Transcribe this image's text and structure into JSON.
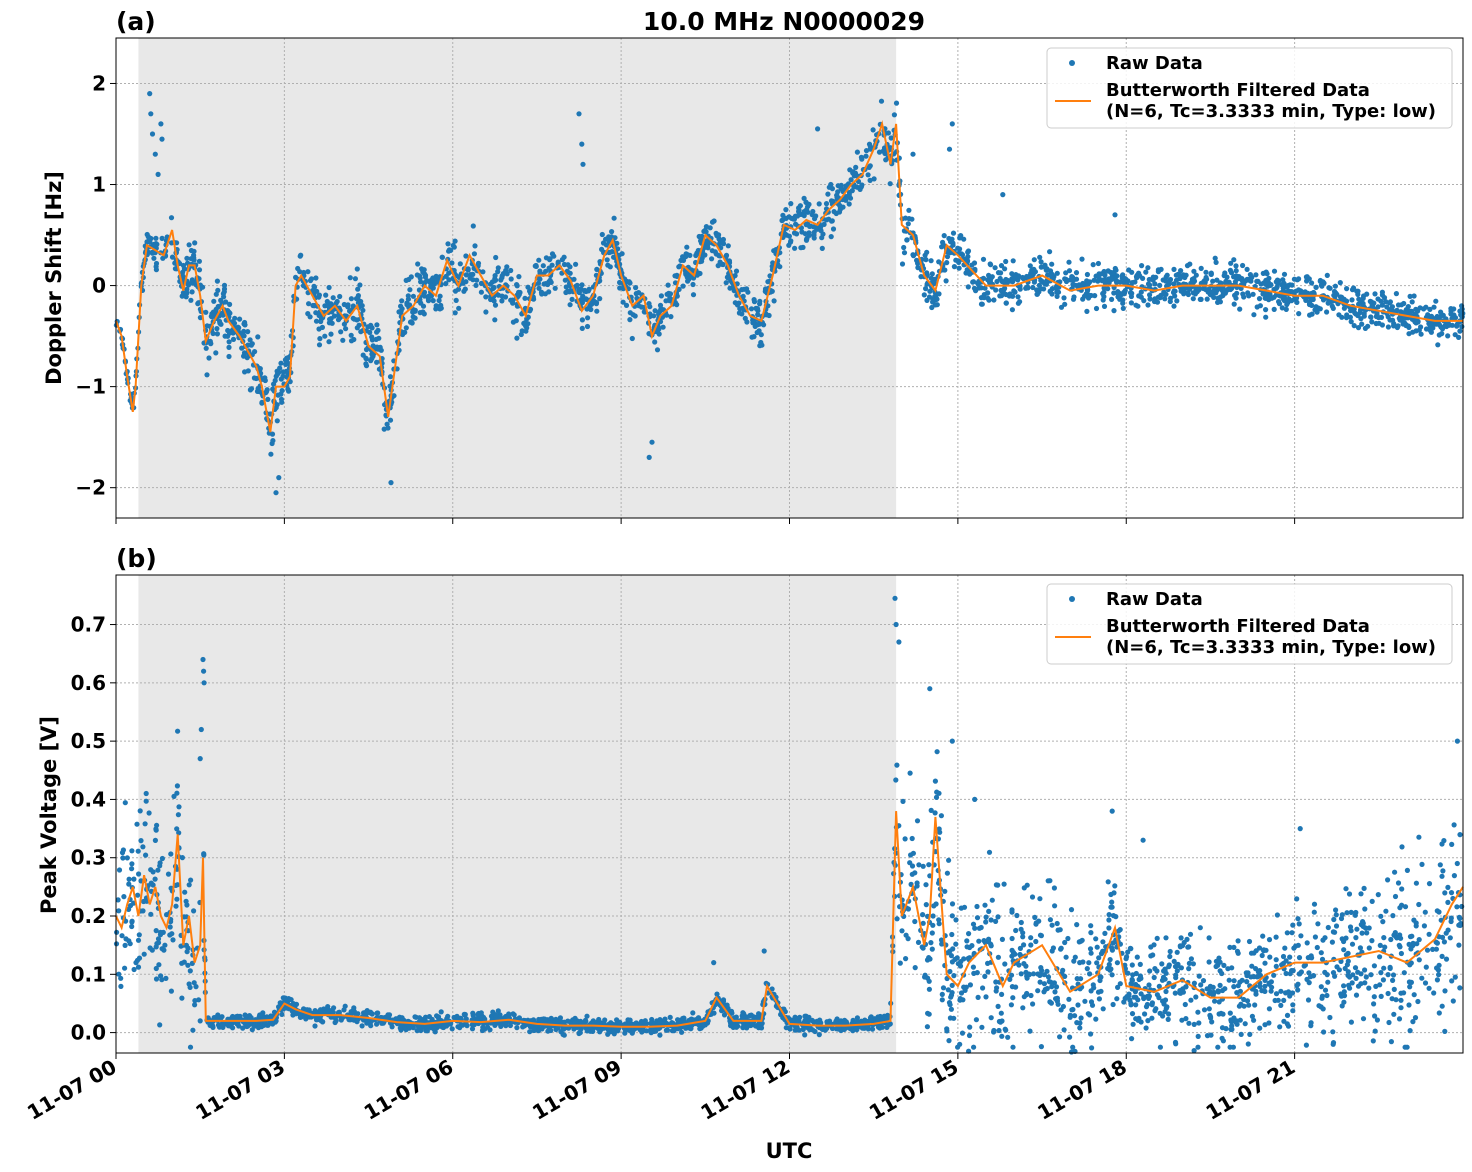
{
  "chart_data": [
    {
      "type": "scatter",
      "panel_label": "(a)",
      "title": "10.0 MHz N0000029",
      "xlabel": "",
      "ylabel": "Doppler Shift [Hz]",
      "xlim": [
        0,
        24
      ],
      "ylim": [
        -2.3,
        2.45
      ],
      "yticks": [
        -2,
        -1,
        0,
        1,
        2
      ],
      "ytick_labels": [
        "−2",
        "−1",
        "0",
        "1",
        "2"
      ],
      "grid": true,
      "shaded_interval": [
        0.4,
        13.9
      ],
      "legend": {
        "placement": "upper-right",
        "entries": [
          "Raw Data",
          "Butterworth Filtered Data",
          "(N=6, Tc=3.3333 min, Type: low)"
        ]
      },
      "series": [
        {
          "name": "Raw Data",
          "kind": "scatter",
          "color": "#1f77b4",
          "noise": [
            [
              0,
              0.05
            ],
            [
              0.4,
              0.08
            ],
            [
              0.8,
              0.2
            ],
            [
              1.5,
              0.25
            ],
            [
              3,
              0.3
            ],
            [
              5,
              0.25
            ],
            [
              9,
              0.2
            ],
            [
              13,
              0.2
            ],
            [
              14,
              0.25
            ],
            [
              15,
              0.2
            ],
            [
              24,
              0.15
            ]
          ],
          "outliers": [
            [
              0.6,
              1.9
            ],
            [
              0.62,
              1.7
            ],
            [
              0.65,
              1.5
            ],
            [
              0.7,
              1.3
            ],
            [
              0.75,
              1.1
            ],
            [
              0.8,
              1.6
            ],
            [
              0.82,
              1.45
            ],
            [
              8.25,
              1.7
            ],
            [
              8.3,
              1.4
            ],
            [
              8.32,
              1.2
            ],
            [
              9.5,
              -1.7
            ],
            [
              9.55,
              -1.55
            ],
            [
              2.85,
              -2.05
            ],
            [
              2.9,
              -1.9
            ],
            [
              4.9,
              -1.95
            ],
            [
              12.5,
              1.55
            ],
            [
              14.2,
              1.3
            ],
            [
              14.9,
              1.6
            ],
            [
              14.85,
              1.35
            ],
            [
              15.8,
              0.9
            ],
            [
              17.8,
              0.7
            ]
          ]
        },
        {
          "name": "Butterworth Filtered Data",
          "kind": "line",
          "color": "#ff7f0e",
          "x": [
            0.0,
            0.1,
            0.2,
            0.3,
            0.35,
            0.45,
            0.55,
            0.7,
            0.85,
            1.0,
            1.1,
            1.2,
            1.3,
            1.4,
            1.5,
            1.6,
            1.75,
            1.9,
            2.0,
            2.2,
            2.4,
            2.5,
            2.6,
            2.75,
            2.85,
            3.0,
            3.1,
            3.2,
            3.3,
            3.5,
            3.7,
            3.9,
            4.1,
            4.3,
            4.5,
            4.7,
            4.85,
            4.95,
            5.1,
            5.3,
            5.5,
            5.7,
            5.9,
            6.1,
            6.3,
            6.5,
            6.7,
            6.9,
            7.1,
            7.3,
            7.5,
            7.7,
            7.9,
            8.1,
            8.3,
            8.5,
            8.7,
            8.85,
            9.0,
            9.2,
            9.4,
            9.55,
            9.7,
            9.9,
            10.1,
            10.3,
            10.5,
            10.7,
            10.9,
            11.1,
            11.3,
            11.5,
            11.7,
            11.9,
            12.1,
            12.3,
            12.5,
            12.7,
            12.9,
            13.1,
            13.3,
            13.5,
            13.65,
            13.8,
            13.9,
            14.0,
            14.2,
            14.4,
            14.6,
            14.8,
            15.0,
            15.5,
            16.0,
            16.5,
            17.0,
            17.5,
            18.0,
            18.5,
            19.0,
            19.5,
            20.0,
            20.5,
            21.0,
            21.5,
            22.0,
            22.5,
            23.0,
            23.5,
            24.0
          ],
          "y": [
            -0.35,
            -0.5,
            -0.9,
            -1.25,
            -1.0,
            0.0,
            0.4,
            0.35,
            0.3,
            0.55,
            0.2,
            -0.05,
            0.2,
            0.2,
            -0.1,
            -0.55,
            -0.35,
            -0.2,
            -0.35,
            -0.5,
            -0.7,
            -0.8,
            -1.0,
            -1.45,
            -1.0,
            -1.0,
            -0.9,
            0.0,
            0.1,
            -0.1,
            -0.3,
            -0.2,
            -0.35,
            -0.2,
            -0.6,
            -0.7,
            -1.3,
            -0.9,
            -0.3,
            -0.2,
            0.0,
            -0.1,
            0.25,
            0.0,
            0.3,
            0.1,
            -0.1,
            0.0,
            -0.1,
            -0.3,
            0.1,
            0.1,
            0.2,
            0.05,
            -0.25,
            -0.1,
            0.3,
            0.45,
            0.1,
            -0.2,
            -0.1,
            -0.5,
            -0.3,
            -0.2,
            0.2,
            0.1,
            0.5,
            0.4,
            0.2,
            -0.1,
            -0.3,
            -0.35,
            0.1,
            0.6,
            0.55,
            0.65,
            0.6,
            0.75,
            0.85,
            1.0,
            1.1,
            1.35,
            1.6,
            1.2,
            1.6,
            0.6,
            0.5,
            0.1,
            -0.05,
            0.4,
            0.3,
            0.0,
            0.0,
            0.1,
            -0.05,
            0.0,
            0.0,
            -0.05,
            0.0,
            0.0,
            0.0,
            -0.05,
            -0.1,
            -0.1,
            -0.2,
            -0.25,
            -0.3,
            -0.35,
            -0.35
          ]
        }
      ]
    },
    {
      "type": "scatter",
      "panel_label": "(b)",
      "title": "",
      "xlabel": "UTC",
      "ylabel": "Peak Voltage [V]",
      "xlim": [
        0,
        24
      ],
      "ylim": [
        -0.035,
        0.785
      ],
      "yticks": [
        0.0,
        0.1,
        0.2,
        0.3,
        0.4,
        0.5,
        0.6,
        0.7
      ],
      "ytick_labels": [
        "0.0",
        "0.1",
        "0.2",
        "0.3",
        "0.4",
        "0.5",
        "0.6",
        "0.7"
      ],
      "xticks": [
        0,
        3,
        6,
        9,
        12,
        15,
        18,
        21
      ],
      "xtick_labels": [
        "11-07 00",
        "11-07 03",
        "11-07 06",
        "11-07 09",
        "11-07 12",
        "11-07 15",
        "11-07 18",
        "11-07 21"
      ],
      "grid": true,
      "shaded_interval": [
        0.4,
        13.9
      ],
      "legend": {
        "placement": "upper-right",
        "entries": [
          "Raw Data",
          "Butterworth Filtered Data",
          "(N=6, Tc=3.3333 min, Type: low)"
        ]
      },
      "series": [
        {
          "name": "Raw Data",
          "kind": "scatter",
          "color": "#1f77b4",
          "noise": [
            [
              0,
              0.12
            ],
            [
              1.2,
              0.14
            ],
            [
              1.55,
              0.14
            ],
            [
              1.6,
              0.012
            ],
            [
              13.8,
              0.012
            ],
            [
              13.95,
              0.16
            ],
            [
              16,
              0.12
            ],
            [
              18,
              0.08
            ],
            [
              20,
              0.09
            ],
            [
              22,
              0.12
            ],
            [
              24,
              0.14
            ]
          ],
          "outliers": [
            [
              1.55,
              0.64
            ],
            [
              1.56,
              0.62
            ],
            [
              1.57,
              0.6
            ],
            [
              1.52,
              0.52
            ],
            [
              1.5,
              0.47
            ],
            [
              13.88,
              0.745
            ],
            [
              13.9,
              0.7
            ],
            [
              13.95,
              0.67
            ],
            [
              14.5,
              0.59
            ],
            [
              14.9,
              0.5
            ],
            [
              15.3,
              0.4
            ],
            [
              17.75,
              0.38
            ],
            [
              18.3,
              0.33
            ],
            [
              21.1,
              0.35
            ],
            [
              23.9,
              0.5
            ],
            [
              11.55,
              0.14
            ],
            [
              10.65,
              0.12
            ]
          ]
        },
        {
          "name": "Butterworth Filtered Data",
          "kind": "line",
          "color": "#ff7f0e",
          "x": [
            0.0,
            0.1,
            0.2,
            0.3,
            0.4,
            0.5,
            0.6,
            0.7,
            0.8,
            0.9,
            1.0,
            1.1,
            1.2,
            1.3,
            1.4,
            1.5,
            1.55,
            1.6,
            1.7,
            2.0,
            2.5,
            2.8,
            3.0,
            3.2,
            3.5,
            4.0,
            4.5,
            5.0,
            5.5,
            6.0,
            6.5,
            7.0,
            7.5,
            8.0,
            8.5,
            9.0,
            9.5,
            10.0,
            10.5,
            10.7,
            11.0,
            11.5,
            11.6,
            12.0,
            12.5,
            13.0,
            13.5,
            13.8,
            13.9,
            14.0,
            14.2,
            14.4,
            14.5,
            14.6,
            14.8,
            15.0,
            15.2,
            15.5,
            15.8,
            16.0,
            16.5,
            17.0,
            17.5,
            17.8,
            18.0,
            18.5,
            19.0,
            19.5,
            20.0,
            20.5,
            21.0,
            21.5,
            22.0,
            22.5,
            23.0,
            23.5,
            23.8,
            24.0
          ],
          "y": [
            0.2,
            0.18,
            0.22,
            0.25,
            0.2,
            0.27,
            0.22,
            0.25,
            0.2,
            0.18,
            0.22,
            0.34,
            0.15,
            0.2,
            0.12,
            0.15,
            0.3,
            0.02,
            0.02,
            0.02,
            0.02,
            0.022,
            0.05,
            0.04,
            0.03,
            0.03,
            0.025,
            0.018,
            0.015,
            0.02,
            0.018,
            0.022,
            0.015,
            0.012,
            0.012,
            0.01,
            0.01,
            0.012,
            0.02,
            0.06,
            0.02,
            0.02,
            0.08,
            0.015,
            0.012,
            0.012,
            0.015,
            0.02,
            0.38,
            0.2,
            0.25,
            0.15,
            0.2,
            0.37,
            0.1,
            0.08,
            0.12,
            0.15,
            0.08,
            0.12,
            0.15,
            0.07,
            0.1,
            0.18,
            0.08,
            0.07,
            0.09,
            0.06,
            0.06,
            0.1,
            0.12,
            0.12,
            0.13,
            0.14,
            0.12,
            0.16,
            0.22,
            0.25
          ]
        }
      ]
    }
  ]
}
